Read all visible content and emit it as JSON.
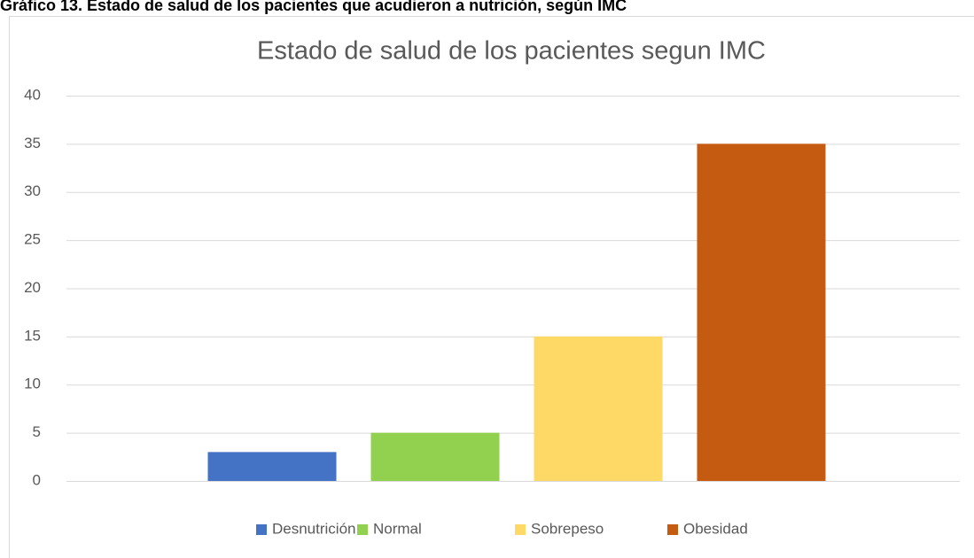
{
  "caption": "Gráfico 13. Estado de salud de los pacientes que acudieron a nutrición, según IMC",
  "chart_data": {
    "type": "bar",
    "title": "Estado de salud de los pacientes segun IMC",
    "categories": [
      null
    ],
    "series": [
      {
        "name": "Desnutrición",
        "color": "#4472c4",
        "values": [
          3
        ]
      },
      {
        "name": "Normal",
        "color": "#92d050",
        "values": [
          5
        ]
      },
      {
        "name": "Sobrepeso",
        "color": "#ffd966",
        "values": [
          15
        ]
      },
      {
        "name": "Obesidad",
        "color": "#c55a11",
        "values": [
          35
        ]
      }
    ],
    "ylim": [
      0,
      40
    ],
    "yticks": [
      0,
      5,
      10,
      15,
      20,
      25,
      30,
      35,
      40
    ],
    "grid": true,
    "legend": "bottom"
  }
}
